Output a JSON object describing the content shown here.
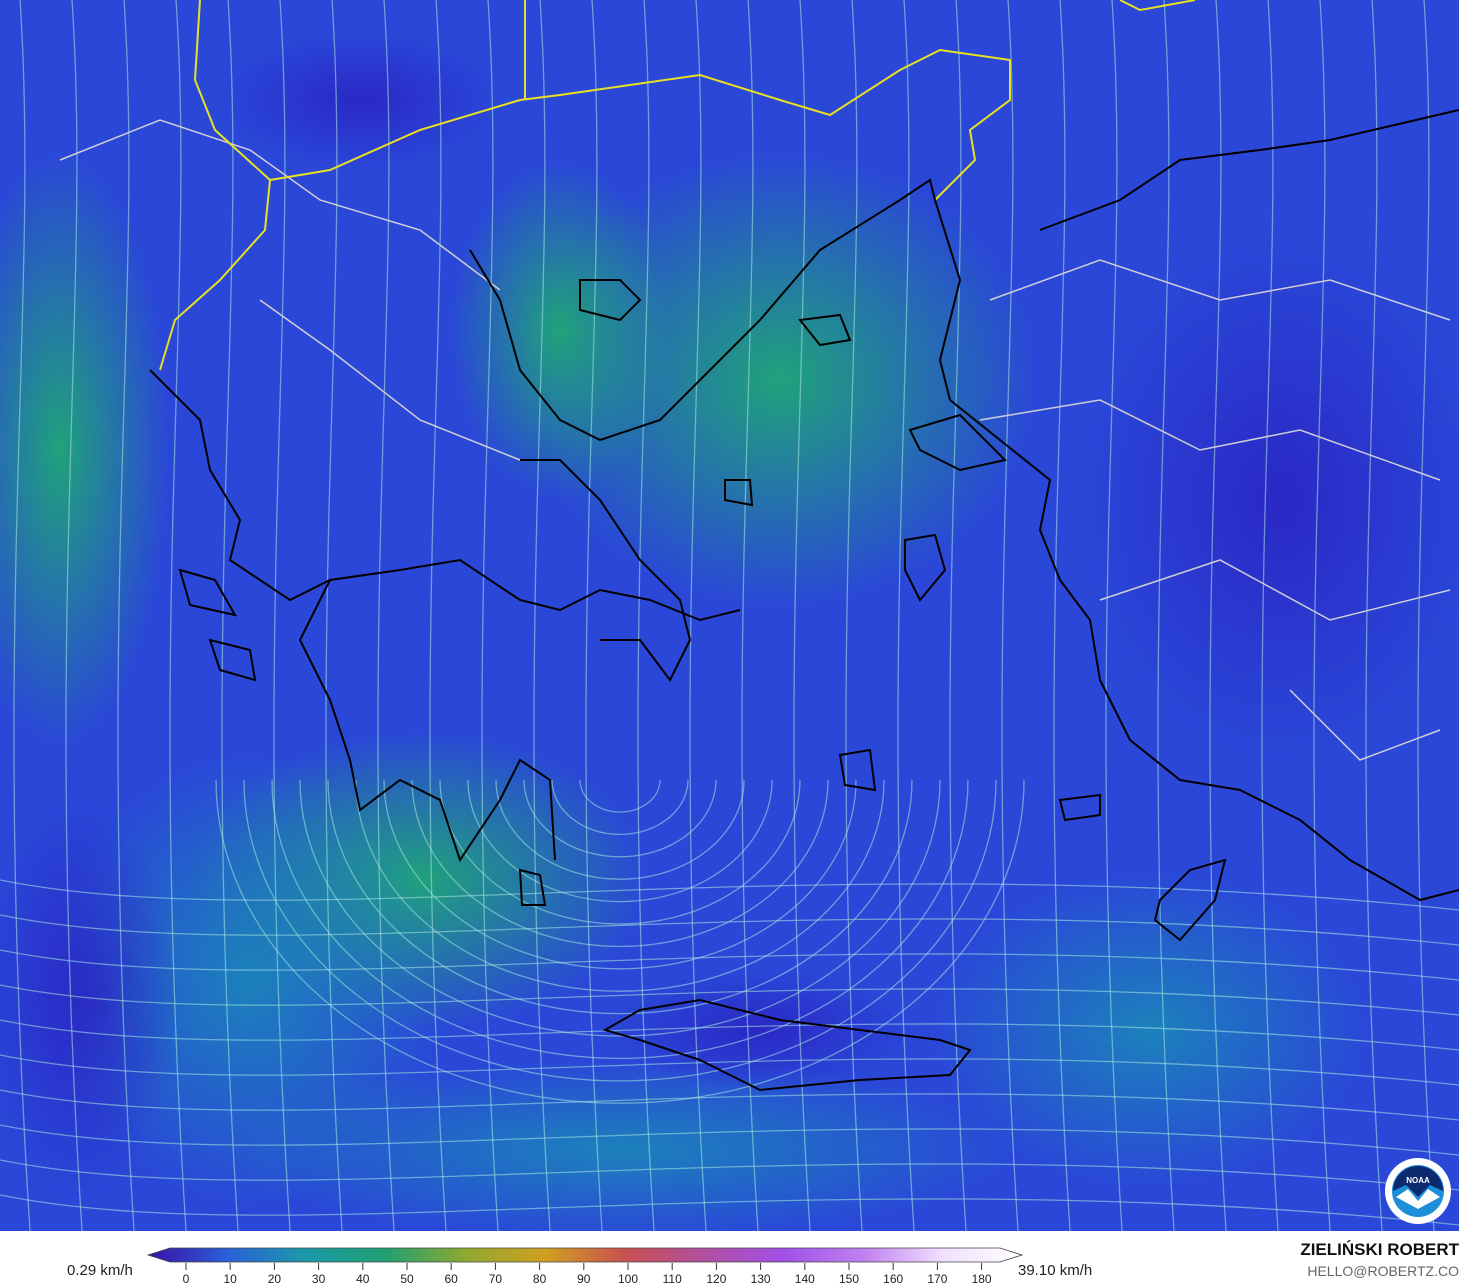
{
  "map": {
    "variable": "wind speed",
    "region": "Greece / Aegean Sea",
    "colors": {
      "low": "#2a2fc8",
      "mid": "#1f9a78",
      "land_border": "#d0d0d0",
      "country_border": "#e8e020",
      "coast": "#000000"
    }
  },
  "legend": {
    "min_label": "0.29 km/h",
    "max_label": "39.10 km/h",
    "ticks": [
      "0",
      "10",
      "20",
      "30",
      "40",
      "50",
      "60",
      "70",
      "80",
      "90",
      "100",
      "110",
      "120",
      "130",
      "140",
      "150",
      "160",
      "170",
      "180"
    ],
    "gradient": [
      "#3a10a8",
      "#2a5fd8",
      "#1a9aa8",
      "#20a070",
      "#90a830",
      "#d0a020",
      "#c85050",
      "#b050a0",
      "#a050e8",
      "#c080f0",
      "#f0e0ff",
      "#ffffff"
    ]
  },
  "credits": {
    "author": "ZIELIŃSKI ROBERT",
    "email": "HELLO@ROBERTZ.CO",
    "logo_text": "NOAA"
  }
}
